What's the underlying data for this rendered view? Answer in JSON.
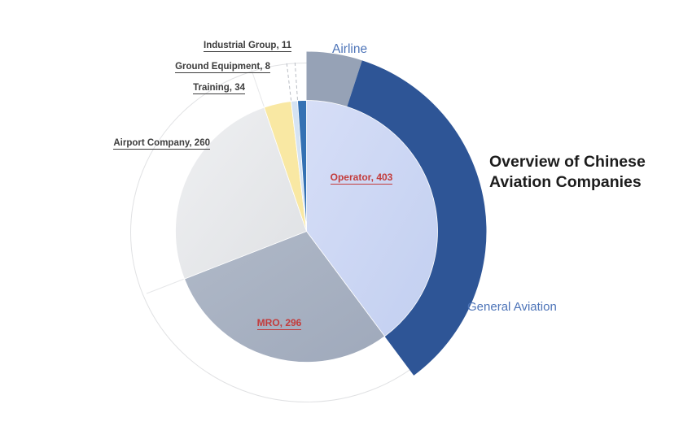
{
  "main_title": {
    "line1": "Overview of Chinese",
    "line2": "Aviation Companies",
    "full": "Overview of Chinese Aviation Companies",
    "color": "#1c1c1c"
  },
  "chart_data": {
    "type": "pie",
    "title": "Overview of Chinese Aviation Companies",
    "total": 1012,
    "start_angle_deg": 0,
    "direction": "clockwise",
    "legend": "none",
    "background": "#ffffff",
    "categories": [
      {
        "name": "Operator",
        "value": 403,
        "label": "Operator, 403",
        "fill": "#d6def7",
        "fill2": "#c2cff0",
        "label_color": "#c33b3b",
        "label_position": "inside"
      },
      {
        "name": "MRO",
        "value": 296,
        "label": "MRO, 296",
        "fill": "#b0b9c8",
        "fill2": "#9fa9bb",
        "label_color": "#c33b3b",
        "label_position": "inside"
      },
      {
        "name": "Airport Company",
        "value": 260,
        "label": "Airport Company, 260",
        "fill": "#eff0f2",
        "fill2": "#dfe1e4",
        "label_color": "#3d3d3d",
        "label_position": "outside"
      },
      {
        "name": "Training",
        "value": 34,
        "label": "Training, 34",
        "fill": "#f9e8a3",
        "label_color": "#3d3d3d",
        "label_position": "outside"
      },
      {
        "name": "Ground Equipment",
        "value": 8,
        "label": "Ground Equipment, 8",
        "fill": "#d5e3f3",
        "label_color": "#3d3d3d",
        "label_position": "outside"
      },
      {
        "name": "Industrial Group",
        "value": 11,
        "label": "Industrial Group, 11",
        "fill": "#3471b3",
        "label_color": "#3d3d3d",
        "label_position": "outside"
      }
    ],
    "ring": {
      "note": "outer ring overlays only the Operator slice, splitting it into Airline and General Aviation; remainder of ring is white with a faint outline",
      "segments": [
        {
          "name": "Airline",
          "label": "Airline",
          "start_deg": 0,
          "end_deg": 18,
          "fill": "#96a2b6",
          "label_color": "#4d74b8"
        },
        {
          "name": "General Aviation",
          "label": "General Aviation",
          "start_deg": 18,
          "end_deg": 143.4,
          "fill": "#2e5596",
          "label_color": "#4d74b8"
        }
      ],
      "dividers_deg": [
        {
          "deg": 248.7,
          "dashed": false
        },
        {
          "deg": 341.2,
          "dashed": false
        },
        {
          "deg": 353.3,
          "dashed": true
        },
        {
          "deg": 356.1,
          "dashed": true
        }
      ],
      "outline_color": "#e0e1e3",
      "divider_solid_color": "#e6e7e9",
      "divider_dashed_color": "#b9bdc4"
    }
  }
}
